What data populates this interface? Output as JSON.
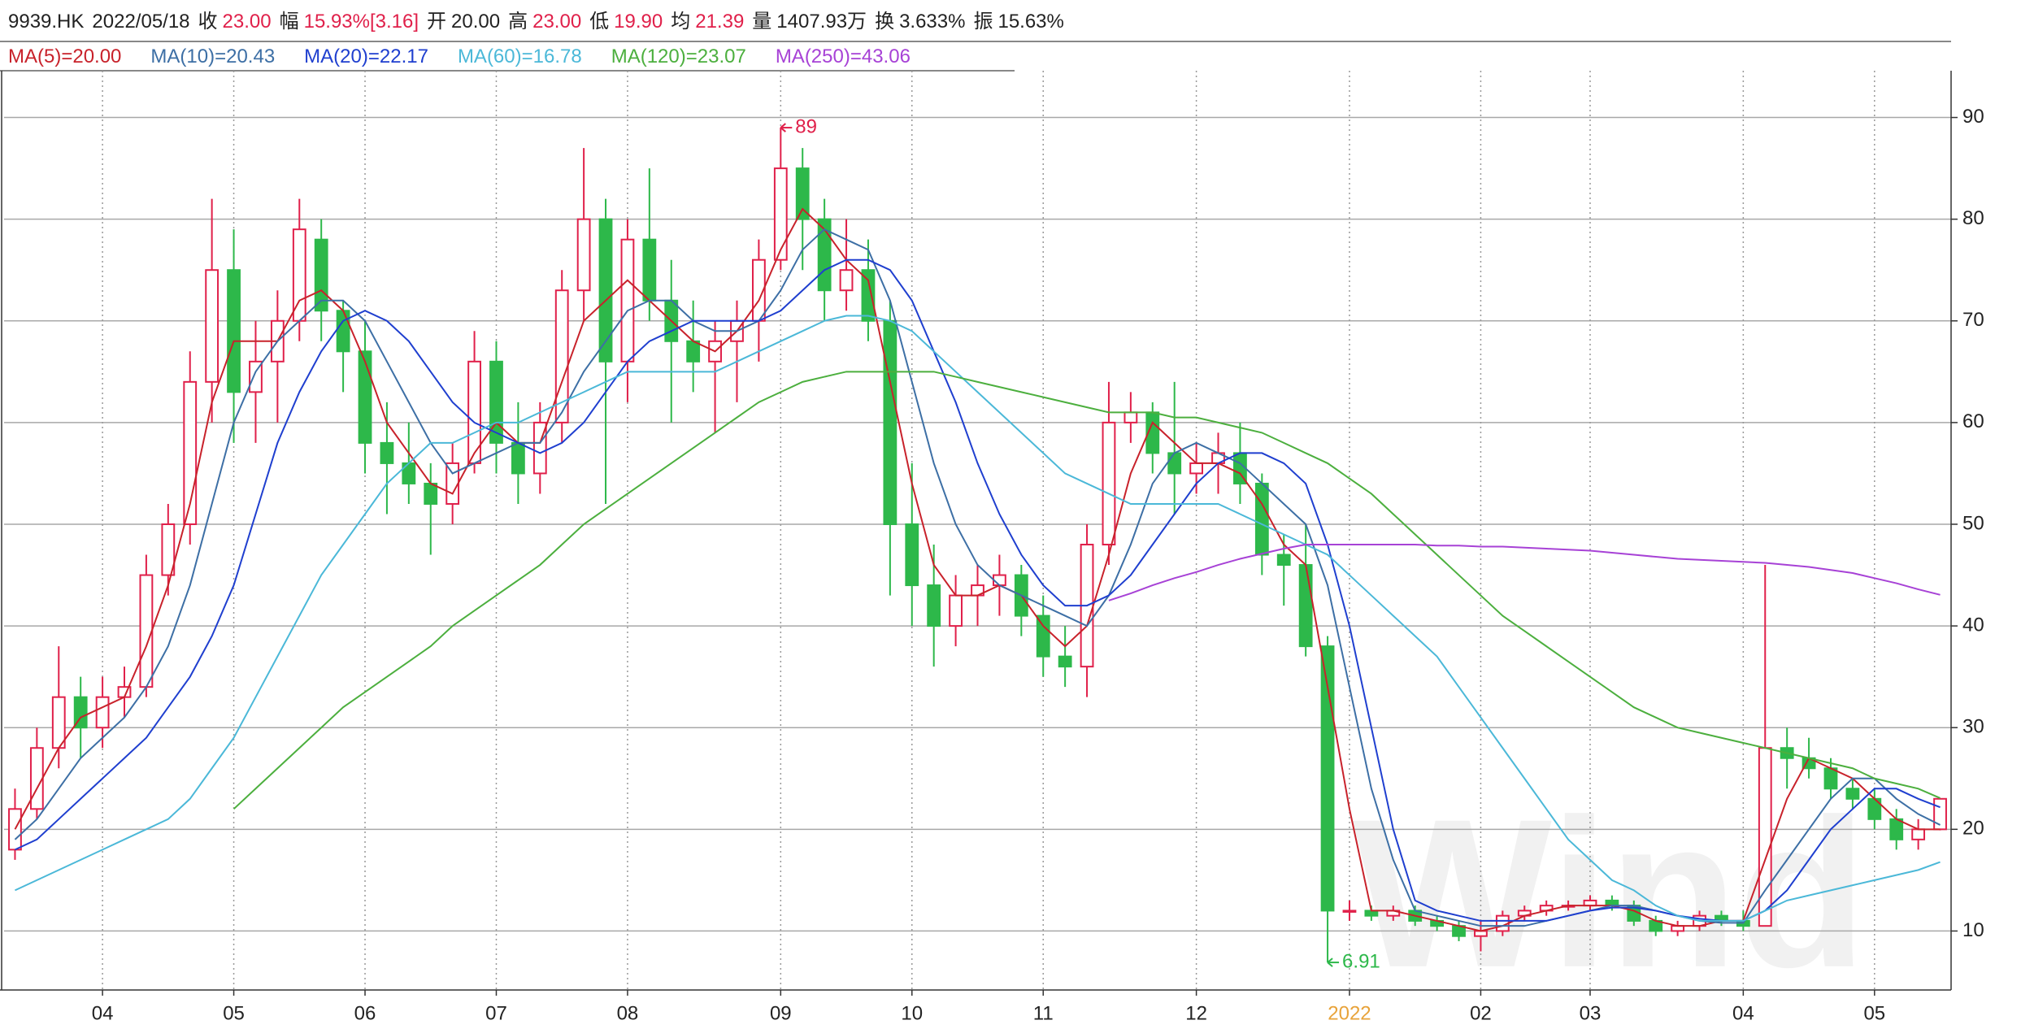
{
  "header": {
    "code": "9939.HK",
    "date": "2022/05/18",
    "fields": [
      {
        "label": "收",
        "value": "23.00",
        "color": "#e0204a"
      },
      {
        "label": "幅",
        "value": "15.93%[3.16]",
        "color": "#e0204a"
      },
      {
        "label": "开",
        "value": "20.00",
        "color": "#222222"
      },
      {
        "label": "高",
        "value": "23.00",
        "color": "#e0204a"
      },
      {
        "label": "低",
        "value": "19.90",
        "color": "#e0204a"
      },
      {
        "label": "均",
        "value": "21.39",
        "color": "#e0204a"
      },
      {
        "label": "量",
        "value": "1407.93万",
        "color": "#222222"
      },
      {
        "label": "换",
        "value": "3.633%",
        "color": "#222222"
      },
      {
        "label": "振",
        "value": "15.63%",
        "color": "#222222"
      }
    ]
  },
  "chart_data": {
    "type": "candlestick",
    "watermark": "Wind",
    "categories": [
      null,
      null,
      null,
      null,
      "04",
      null,
      null,
      null,
      null,
      null,
      "05",
      null,
      null,
      null,
      null,
      null,
      "06",
      null,
      null,
      null,
      null,
      null,
      "07",
      null,
      null,
      null,
      null,
      null,
      "08",
      null,
      null,
      null,
      null,
      null,
      null,
      "09",
      null,
      null,
      null,
      null,
      null,
      "10",
      null,
      null,
      null,
      null,
      null,
      "11",
      null,
      null,
      null,
      null,
      null,
      null,
      "12",
      null,
      null,
      null,
      null,
      null,
      null,
      "2022",
      null,
      null,
      null,
      null,
      null,
      "02",
      null,
      null,
      null,
      null,
      "03",
      null,
      null,
      null,
      null,
      null,
      null,
      "04",
      null,
      null,
      null,
      null,
      null,
      "05",
      null,
      null,
      null
    ],
    "year_label_color": "#e8a33a",
    "candles": {
      "open": [
        18,
        22,
        28,
        33,
        30,
        33,
        34,
        45,
        50,
        64,
        75,
        63,
        66,
        70,
        78,
        71,
        67,
        58,
        56,
        54,
        52,
        56,
        66,
        58,
        55,
        60,
        73,
        80,
        66,
        78,
        72,
        68,
        66,
        68,
        70,
        76,
        85,
        80,
        73,
        75,
        70,
        50,
        44,
        40,
        43,
        44,
        45,
        41,
        37,
        36,
        48,
        60,
        61,
        57,
        55,
        56,
        57,
        54,
        47,
        46,
        38,
        12,
        12,
        11.5,
        12,
        11,
        10.5,
        9.5,
        10,
        11.5,
        12,
        12.5,
        12.5,
        13,
        12.5,
        11,
        10,
        10.5,
        11.5,
        11,
        10.5,
        28,
        27,
        26,
        24,
        23,
        21,
        19,
        20
      ],
      "high": [
        24,
        30,
        38,
        35,
        35,
        36,
        47,
        52,
        67,
        82,
        79,
        70,
        73,
        82,
        80,
        72,
        70,
        62,
        60,
        56,
        58,
        69,
        68,
        62,
        62,
        75,
        87,
        82,
        80,
        85,
        76,
        72,
        70,
        72,
        78,
        89,
        87,
        82,
        80,
        78,
        72,
        56,
        48,
        45,
        46,
        47,
        46,
        43,
        40,
        50,
        64,
        63,
        62,
        64,
        58,
        59,
        60,
        55,
        49,
        50,
        39,
        13,
        12.5,
        12.5,
        12.5,
        11.5,
        11,
        11,
        12,
        12.5,
        13,
        13,
        13.5,
        13.5,
        13,
        11.5,
        11,
        12,
        12,
        12,
        46,
        30,
        29,
        27,
        25,
        24,
        22,
        21,
        23
      ],
      "low": [
        17,
        21,
        26,
        27,
        28,
        31,
        33,
        43,
        48,
        60,
        58,
        58,
        60,
        68,
        68,
        63,
        55,
        51,
        52,
        47,
        50,
        55,
        55,
        52,
        53,
        58,
        70,
        52,
        62,
        70,
        60,
        63,
        59,
        62,
        66,
        75,
        75,
        70,
        71,
        68,
        43,
        40,
        36,
        38,
        40,
        41,
        39,
        35,
        34,
        33,
        46,
        58,
        55,
        51,
        53,
        53,
        52,
        45,
        42,
        37,
        6.91,
        11,
        11,
        11,
        10.5,
        10,
        9,
        8,
        9.5,
        11,
        11.5,
        12,
        12,
        12,
        10.5,
        9.5,
        9.5,
        10,
        10.5,
        10,
        10.5,
        24,
        25,
        23,
        22,
        20,
        18,
        18,
        19.9
      ],
      "close": [
        22,
        28,
        33,
        30,
        33,
        34,
        45,
        50,
        64,
        75,
        63,
        66,
        70,
        79,
        71,
        67,
        58,
        56,
        54,
        52,
        56,
        66,
        58,
        55,
        60,
        73,
        80,
        66,
        78,
        72,
        68,
        66,
        68,
        70,
        76,
        85,
        80,
        73,
        75,
        70,
        50,
        44,
        40,
        43,
        44,
        45,
        41,
        37,
        36,
        48,
        60,
        61,
        57,
        55,
        56,
        57,
        54,
        47,
        46,
        38,
        12,
        12,
        11.5,
        12,
        11,
        10.5,
        9.5,
        10,
        11.5,
        12,
        12.5,
        12.5,
        13,
        12.5,
        11,
        10,
        10.5,
        11.5,
        11,
        10.5,
        28,
        27,
        26,
        24,
        23,
        21,
        19,
        20,
        23
      ]
    },
    "up_color": "#e0204a",
    "down_color": "#2db84a",
    "max_label": "89",
    "min_label": "6.91",
    "series": [
      {
        "name": "MA(5)=20.00",
        "color": "#c8222b",
        "values": [
          20,
          24,
          28,
          31,
          32,
          33,
          38,
          44,
          52,
          62,
          68,
          68,
          68,
          72,
          73,
          71,
          66,
          60,
          57,
          54,
          53,
          57,
          60,
          58,
          58,
          64,
          70,
          72,
          74,
          72,
          70,
          68,
          67,
          69,
          72,
          77,
          81,
          79,
          76,
          74,
          64,
          54,
          46,
          43,
          43,
          44,
          43,
          40,
          38,
          40,
          47,
          55,
          60,
          58,
          56,
          56,
          55,
          52,
          48,
          46,
          34,
          22,
          12,
          12,
          11.5,
          11,
          10.5,
          10,
          10.5,
          11.5,
          12,
          12.5,
          12.5,
          12.5,
          12,
          11,
          10.5,
          10.5,
          11,
          11,
          17,
          23,
          27,
          26,
          25,
          23,
          21,
          20,
          20
        ]
      },
      {
        "name": "MA(10)=20.43",
        "color": "#3d6fa5",
        "values": [
          19,
          21,
          24,
          27,
          29,
          31,
          34,
          38,
          44,
          52,
          60,
          65,
          68,
          70,
          72,
          72,
          70,
          66,
          62,
          58,
          55,
          56,
          57,
          58,
          58,
          61,
          65,
          68,
          71,
          72,
          72,
          70,
          69,
          69,
          70,
          73,
          77,
          79,
          78,
          77,
          72,
          64,
          56,
          50,
          46,
          44,
          43,
          42,
          41,
          40,
          43,
          48,
          54,
          57,
          58,
          57,
          56,
          54,
          52,
          50,
          44,
          34,
          24,
          17,
          12,
          11.5,
          11,
          10.5,
          10.5,
          10.5,
          11,
          11.5,
          12,
          12.5,
          12.5,
          12,
          11.5,
          11,
          10.8,
          10.8,
          14,
          17,
          20,
          23,
          25,
          25,
          23,
          21.5,
          20.43
        ]
      },
      {
        "name": "MA(20)=22.17",
        "color": "#1f3fcf",
        "values": [
          18,
          19,
          21,
          23,
          25,
          27,
          29,
          32,
          35,
          39,
          44,
          51,
          58,
          63,
          67,
          70,
          71,
          70,
          68,
          65,
          62,
          60,
          59,
          58,
          57,
          58,
          60,
          63,
          66,
          68,
          69,
          70,
          70,
          70,
          70,
          71,
          73,
          75,
          76,
          76,
          75,
          72,
          67,
          62,
          56,
          51,
          47,
          44,
          42,
          42,
          43,
          45,
          48,
          51,
          54,
          56,
          57,
          57,
          56,
          54,
          48,
          40,
          30,
          20,
          13,
          12,
          11.5,
          11,
          11,
          11,
          11,
          11.5,
          12,
          12.3,
          12.3,
          12,
          11.5,
          11.2,
          11,
          11,
          12,
          14,
          17,
          20,
          22,
          24,
          24,
          23,
          22.17
        ]
      },
      {
        "name": "MA(60)=16.78",
        "color": "#4bb8d8",
        "values": [
          14,
          15,
          16,
          17,
          18,
          19,
          20,
          21,
          23,
          26,
          29,
          33,
          37,
          41,
          45,
          48,
          51,
          54,
          56,
          58,
          58,
          59,
          60,
          60,
          61,
          62,
          63,
          64,
          65,
          65,
          65,
          65,
          65,
          66,
          67,
          68,
          69,
          70,
          70.5,
          70.5,
          70,
          69,
          67,
          65,
          63,
          61,
          59,
          57,
          55,
          54,
          53,
          52,
          52,
          52,
          52,
          52,
          51,
          50,
          49,
          48,
          47,
          45,
          43,
          41,
          39,
          37,
          34,
          31,
          28,
          25,
          22,
          19,
          17,
          15,
          14,
          12.5,
          11.5,
          11,
          11,
          11,
          12,
          13,
          13.5,
          14,
          14.5,
          15,
          15.5,
          16,
          16.78
        ]
      },
      {
        "name": "MA(120)=23.07",
        "color": "#4caf3e",
        "values": [
          null,
          null,
          null,
          null,
          null,
          null,
          null,
          null,
          null,
          null,
          22,
          24,
          26,
          28,
          30,
          32,
          33.5,
          35,
          36.5,
          38,
          40,
          41.5,
          43,
          44.5,
          46,
          48,
          50,
          51.5,
          53,
          54.5,
          56,
          57.5,
          59,
          60.5,
          62,
          63,
          64,
          64.5,
          65,
          65,
          65,
          65,
          65,
          64.5,
          64,
          63.5,
          63,
          62.5,
          62,
          61.5,
          61,
          61,
          61,
          60.5,
          60.5,
          60,
          59.5,
          59,
          58,
          57,
          56,
          54.5,
          53,
          51,
          49,
          47,
          45,
          43,
          41,
          39.5,
          38,
          36.5,
          35,
          33.5,
          32,
          31,
          30,
          29.5,
          29,
          28.5,
          28,
          27.5,
          27,
          26.5,
          26,
          25,
          24.5,
          24,
          23.07
        ]
      },
      {
        "name": "MA(250)=43.06",
        "color": "#a742d6",
        "values": [
          null,
          null,
          null,
          null,
          null,
          null,
          null,
          null,
          null,
          null,
          null,
          null,
          null,
          null,
          null,
          null,
          null,
          null,
          null,
          null,
          null,
          null,
          null,
          null,
          null,
          null,
          null,
          null,
          null,
          null,
          null,
          null,
          null,
          null,
          null,
          null,
          null,
          null,
          null,
          null,
          null,
          null,
          null,
          null,
          null,
          null,
          null,
          null,
          null,
          null,
          42.5,
          43.2,
          44,
          44.7,
          45.3,
          46,
          46.6,
          47.1,
          47.6,
          48,
          48,
          48,
          48,
          48,
          48,
          47.9,
          47.9,
          47.8,
          47.8,
          47.7,
          47.6,
          47.5,
          47.4,
          47.2,
          47,
          46.8,
          46.6,
          46.5,
          46.4,
          46.3,
          46.2,
          46,
          45.8,
          45.5,
          45.2,
          44.7,
          44.2,
          43.6,
          43.06
        ]
      }
    ],
    "ylim": [
      4.2,
      94.6
    ],
    "yticks": [
      10,
      20,
      30,
      40,
      50,
      60,
      70,
      80,
      90
    ],
    "grid": true
  }
}
